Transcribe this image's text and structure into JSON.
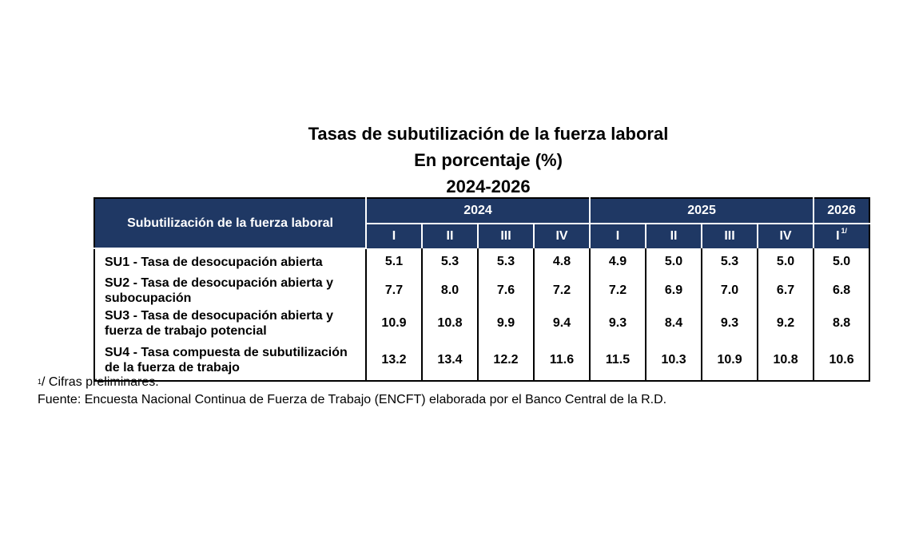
{
  "title": {
    "line1": "Tasas de subutilización de la fuerza laboral",
    "line2": "En porcentaje (%)",
    "line3": "2024-2026"
  },
  "table": {
    "row_header": "Subutilización de la fuerza laboral",
    "years": [
      "2024",
      "2025",
      "2026"
    ],
    "quarters": [
      "I",
      "II",
      "III",
      "IV",
      "I",
      "II",
      "III",
      "IV",
      "I"
    ],
    "last_quarter_note": "1/",
    "rows": [
      {
        "label": "SU1 - Tasa de desocupación abierta",
        "values": [
          "5.1",
          "5.3",
          "5.3",
          "4.8",
          "4.9",
          "5.0",
          "5.3",
          "5.0",
          "5.0"
        ]
      },
      {
        "label": "SU2 - Tasa de desocupación abierta y subocupación",
        "values": [
          "7.7",
          "8.0",
          "7.6",
          "7.2",
          "7.2",
          "6.9",
          "7.0",
          "6.7",
          "6.8"
        ]
      },
      {
        "label": "SU3 - Tasa de desocupación abierta y fuerza de trabajo potencial",
        "values": [
          "10.9",
          "10.8",
          "9.9",
          "9.4",
          "9.3",
          "8.4",
          "9.3",
          "9.2",
          "8.8"
        ]
      },
      {
        "label": "SU4 - Tasa compuesta de subutilización de la fuerza de trabajo",
        "values": [
          "13.2",
          "13.4",
          "12.2",
          "11.6",
          "11.5",
          "10.3",
          "10.9",
          "10.8",
          "10.6"
        ]
      }
    ]
  },
  "notes": {
    "footnote_mark": "1",
    "footnote_text": "/ Cifras preliminares.",
    "source": "Fuente: Encuesta Nacional Continua de Fuerza de Trabajo (ENCFT) elaborada por el Banco Central de la R.D."
  },
  "colors": {
    "header_bg": "#1f3864",
    "header_text": "#ffffff"
  }
}
